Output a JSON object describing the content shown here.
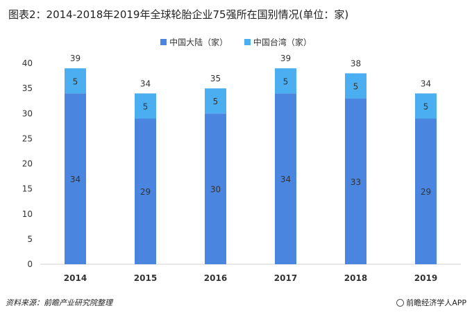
{
  "chart_data": {
    "type": "bar",
    "stacked": true,
    "title": "图表2：2014-2018年2019年全球轮胎企业75强所在国别情况(单位：家)",
    "categories": [
      "2014",
      "2015",
      "2016",
      "2017",
      "2018",
      "2019"
    ],
    "series": [
      {
        "name": "中国大陆（家）",
        "color": "#4a86e0",
        "values": [
          34,
          29,
          30,
          34,
          33,
          29
        ]
      },
      {
        "name": "中国台湾（家）",
        "color": "#4aaef0",
        "values": [
          5,
          5,
          5,
          5,
          5,
          5
        ]
      }
    ],
    "totals": [
      39,
      34,
      35,
      39,
      38,
      34
    ],
    "ylim": [
      0,
      40
    ],
    "yticks": [
      0,
      5,
      10,
      15,
      20,
      25,
      30,
      35,
      40
    ],
    "legend_position": "top-center",
    "grid": false
  },
  "footer": {
    "source": "资料来源：前瞻产业研究院整理",
    "brand": "前瞻经济学人APP"
  }
}
